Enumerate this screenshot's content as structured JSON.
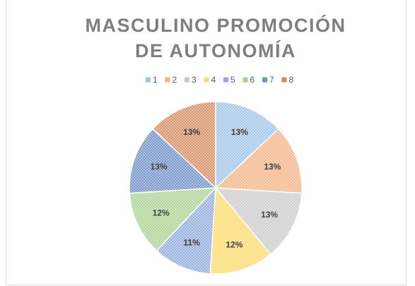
{
  "chart_data": {
    "type": "pie",
    "title": "MASCULINO PROMOCIÓN DE AUTONOMÍA",
    "categories": [
      "1",
      "2",
      "3",
      "4",
      "5",
      "6",
      "7",
      "8"
    ],
    "values": [
      13,
      13,
      13,
      12,
      11,
      12,
      13,
      13
    ],
    "value_labels": [
      "13%",
      "13%",
      "13%",
      "12%",
      "11%",
      "12%",
      "13%",
      "13%"
    ],
    "colors": [
      "#9dc3e6",
      "#f4b183",
      "#c9c9c9",
      "#ffd966",
      "#8faadc",
      "#a9d18e",
      "#6f8fc7",
      "#d38a5e"
    ],
    "legend": "top"
  }
}
